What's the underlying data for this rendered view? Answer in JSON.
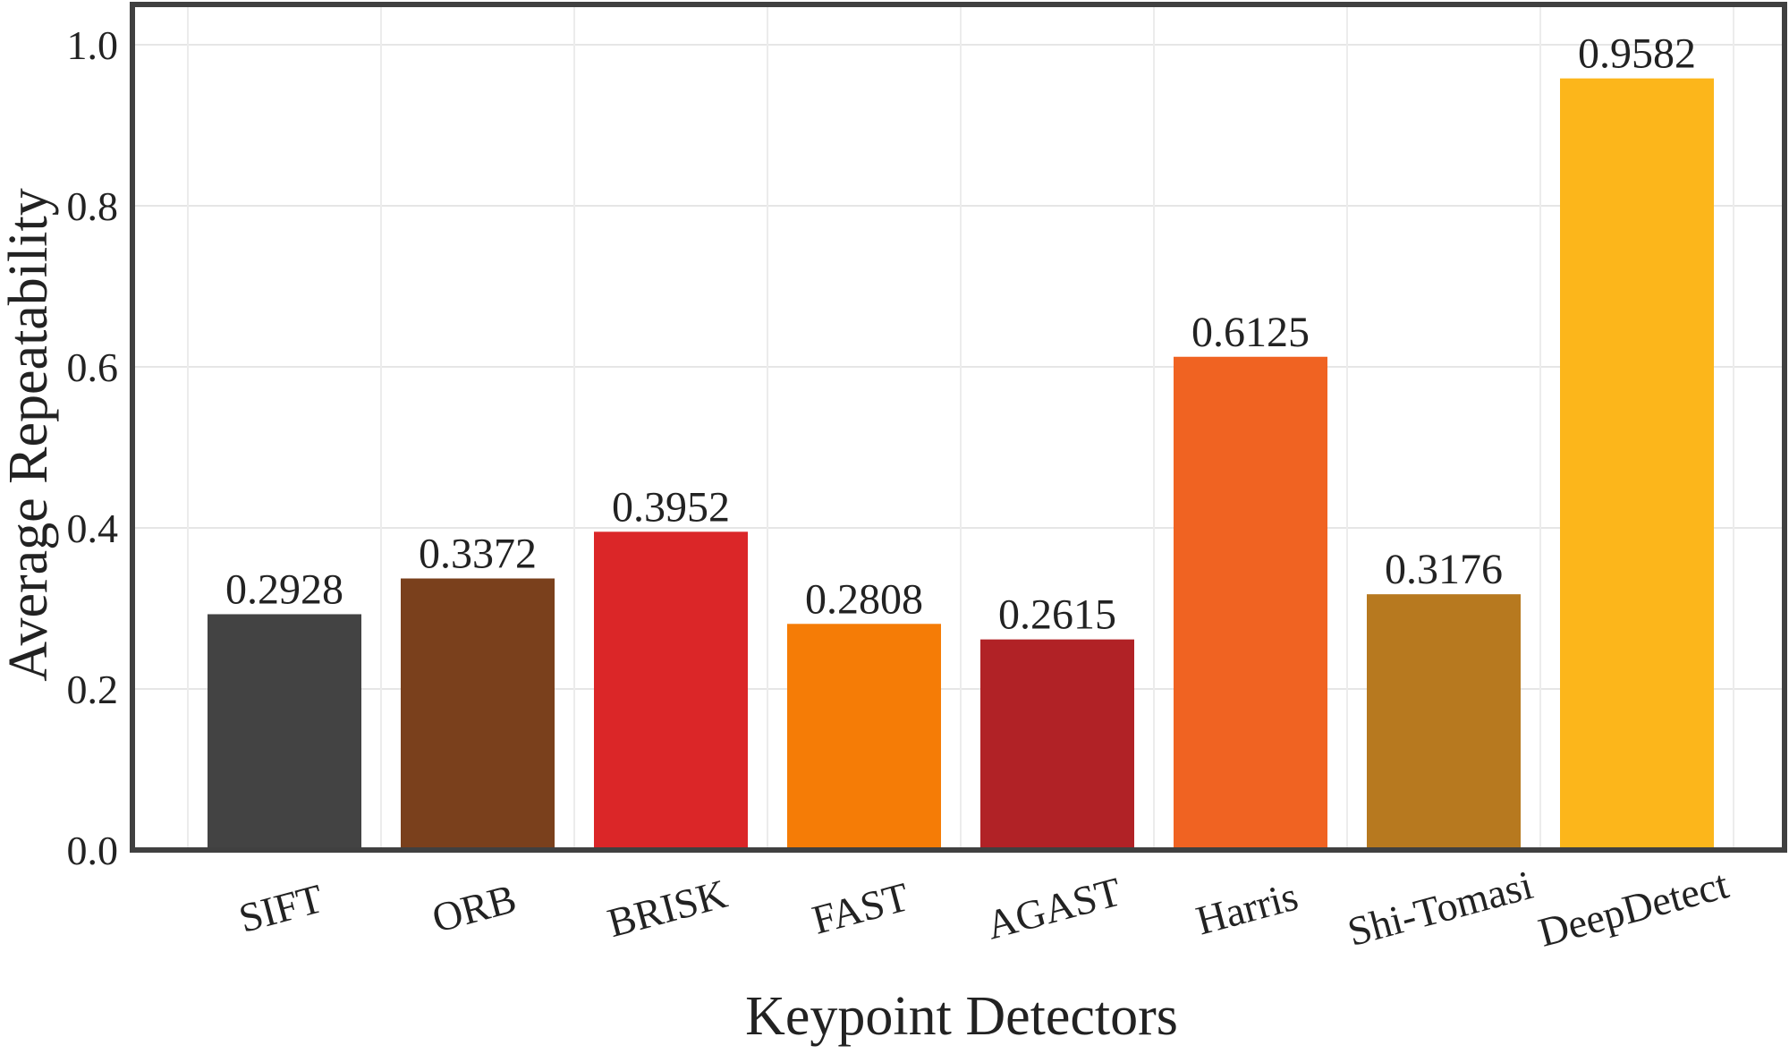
{
  "chart_data": {
    "type": "bar",
    "title": "",
    "xlabel": "Keypoint Detectors",
    "ylabel": "Average Repeatability",
    "categories": [
      "SIFT",
      "ORB",
      "BRISK",
      "FAST",
      "AGAST",
      "Harris",
      "Shi-Tomasi",
      "DeepDetect"
    ],
    "values": [
      0.2928,
      0.3372,
      0.3952,
      0.2808,
      0.2615,
      0.6125,
      0.3176,
      0.9582
    ],
    "value_labels": [
      "0.2928",
      "0.3372",
      "0.3952",
      "0.2808",
      "0.2615",
      "0.6125",
      "0.3176",
      "0.9582"
    ],
    "colors": [
      "#434343",
      "#7a401c",
      "#db2628",
      "#f57c06",
      "#b12226",
      "#f06322",
      "#b7791f",
      "#fcb61b"
    ],
    "ylim": [
      0,
      1.05
    ],
    "yticks": [
      0.0,
      0.2,
      0.4,
      0.6,
      0.8,
      1.0
    ],
    "ytick_labels": [
      "0.0",
      "0.2",
      "0.4",
      "0.6",
      "0.8",
      "1.0"
    ],
    "grid": true,
    "legend": false,
    "xtick_rotation_deg": -15
  }
}
